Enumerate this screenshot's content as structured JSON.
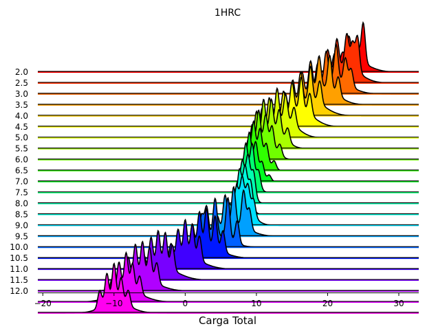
{
  "chart_data": {
    "type": "ridgeline",
    "title": "1HRC",
    "xlabel": "Carga Total",
    "ylabel": "",
    "xlim": [
      -20.7,
      32.8
    ],
    "xticks": [
      -20,
      -10,
      0,
      10,
      20,
      30
    ],
    "grid": false,
    "ridges": [
      {
        "label": "2.0",
        "center": 23.6,
        "spread": 2.0,
        "color": "#ff0000",
        "peaks": [
          [
            25.0,
            1.0
          ],
          [
            23.0,
            0.62
          ],
          [
            24.1,
            0.45
          ],
          [
            21.0,
            0.35
          ],
          [
            22.1,
            0.28
          ]
        ]
      },
      {
        "label": "2.5",
        "center": 22.3,
        "spread": 2.0,
        "color": "#ff3000",
        "peaks": [
          [
            24.2,
            0.55
          ],
          [
            22.7,
            0.5
          ],
          [
            21.3,
            0.45
          ],
          [
            20.0,
            0.38
          ],
          [
            23.5,
            0.4
          ]
        ]
      },
      {
        "label": "3.0",
        "center": 20.9,
        "spread": 2.1,
        "color": "#ff6a00",
        "peaks": [
          [
            21.2,
            0.7
          ],
          [
            19.8,
            0.6
          ],
          [
            22.5,
            0.5
          ],
          [
            18.6,
            0.45
          ],
          [
            23.3,
            0.35
          ]
        ]
      },
      {
        "label": "3.5",
        "center": 19.1,
        "spread": 2.1,
        "color": "#ffa000",
        "peaks": [
          [
            20.3,
            0.55
          ],
          [
            18.8,
            0.5
          ],
          [
            17.6,
            0.48
          ],
          [
            16.4,
            0.4
          ],
          [
            21.5,
            0.3
          ]
        ]
      },
      {
        "label": "4.0",
        "center": 17.5,
        "spread": 2.0,
        "color": "#ffd000",
        "peaks": [
          [
            17.6,
            0.6
          ],
          [
            16.2,
            0.55
          ],
          [
            15.1,
            0.5
          ],
          [
            18.9,
            0.4
          ],
          [
            14.0,
            0.35
          ]
        ]
      },
      {
        "label": "4.5",
        "center": 16.0,
        "spread": 1.9,
        "color": "#ffff00",
        "peaks": [
          [
            16.3,
            0.55
          ],
          [
            15.0,
            0.5
          ],
          [
            13.8,
            0.45
          ],
          [
            17.5,
            0.35
          ],
          [
            12.7,
            0.3
          ]
        ]
      },
      {
        "label": "5.0",
        "center": 14.0,
        "spread": 1.7,
        "color": "#ddff00",
        "peaks": [
          [
            12.9,
            0.6
          ],
          [
            11.8,
            0.55
          ],
          [
            14.1,
            0.45
          ],
          [
            10.8,
            0.45
          ],
          [
            15.3,
            0.3
          ]
        ]
      },
      {
        "label": "5.5",
        "center": 12.5,
        "spread": 1.5,
        "color": "#a8ff00",
        "peaks": [
          [
            11.0,
            0.65
          ],
          [
            12.1,
            0.55
          ],
          [
            10.0,
            0.55
          ],
          [
            13.2,
            0.4
          ],
          [
            14.4,
            0.22
          ]
        ]
      },
      {
        "label": "6.0",
        "center": 11.3,
        "spread": 1.3,
        "color": "#70ff00",
        "peaks": [
          [
            10.3,
            0.7
          ],
          [
            11.3,
            0.55
          ],
          [
            9.4,
            0.55
          ],
          [
            12.2,
            0.4
          ],
          [
            13.3,
            0.2
          ]
        ]
      },
      {
        "label": "6.5",
        "center": 10.4,
        "spread": 1.1,
        "color": "#30ff00",
        "peaks": [
          [
            9.6,
            0.75
          ],
          [
            10.5,
            0.55
          ],
          [
            8.8,
            0.5
          ],
          [
            11.4,
            0.35
          ],
          [
            12.5,
            0.15
          ]
        ]
      },
      {
        "label": "7.0",
        "center": 9.7,
        "spread": 0.9,
        "color": "#00ff20",
        "peaks": [
          [
            9.0,
            0.8
          ],
          [
            9.9,
            0.55
          ],
          [
            8.3,
            0.4
          ],
          [
            10.8,
            0.28
          ],
          [
            11.8,
            0.12
          ]
        ]
      },
      {
        "label": "7.5",
        "center": 9.3,
        "spread": 0.8,
        "color": "#00ff70",
        "peaks": [
          [
            8.5,
            0.65
          ],
          [
            9.4,
            0.55
          ],
          [
            7.8,
            0.35
          ],
          [
            10.3,
            0.25
          ]
        ]
      },
      {
        "label": "8.0",
        "center": 8.9,
        "spread": 0.7,
        "color": "#00ffb0",
        "peaks": [
          [
            8.0,
            0.55
          ],
          [
            8.8,
            0.5
          ],
          [
            9.6,
            0.35
          ],
          [
            7.3,
            0.3
          ]
        ]
      },
      {
        "label": "8.5",
        "center": 8.5,
        "spread": 0.7,
        "color": "#00ffe0",
        "peaks": [
          [
            7.6,
            0.5
          ],
          [
            8.4,
            0.4
          ],
          [
            9.2,
            0.3
          ],
          [
            6.8,
            0.25
          ]
        ]
      },
      {
        "label": "9.0",
        "center": 8.0,
        "spread": 1.4,
        "color": "#00e0ff",
        "peaks": [
          [
            8.0,
            0.45
          ],
          [
            8.8,
            0.38
          ],
          [
            7.2,
            0.35
          ],
          [
            9.6,
            0.25
          ],
          [
            6.2,
            0.2
          ]
        ]
      },
      {
        "label": "9.5",
        "center": 7.0,
        "spread": 2.0,
        "color": "#00a0ff",
        "peaks": [
          [
            6.8,
            1.0
          ],
          [
            8.2,
            0.95
          ],
          [
            5.6,
            0.85
          ],
          [
            9.0,
            0.55
          ],
          [
            4.5,
            0.4
          ]
        ]
      },
      {
        "label": "10.0",
        "center": 4.3,
        "spread": 2.0,
        "color": "#0060ff",
        "peaks": [
          [
            6.0,
            1.0
          ],
          [
            4.2,
            0.9
          ],
          [
            3.0,
            0.75
          ],
          [
            2.3,
            0.6
          ],
          [
            7.3,
            0.55
          ]
        ]
      },
      {
        "label": "10.5",
        "center": 3.0,
        "spread": 2.2,
        "color": "#0018ff",
        "peaks": [
          [
            3.0,
            1.0
          ],
          [
            2.0,
            0.95
          ],
          [
            4.2,
            0.85
          ],
          [
            1.0,
            0.7
          ],
          [
            5.3,
            0.55
          ]
        ]
      },
      {
        "label": "11.0",
        "center": 0.3,
        "spread": 2.2,
        "color": "#4000ff",
        "peaks": [
          [
            0.0,
            1.0
          ],
          [
            1.0,
            0.9
          ],
          [
            -1.0,
            0.8
          ],
          [
            2.0,
            0.65
          ],
          [
            -2.0,
            0.5
          ]
        ]
      },
      {
        "label": "11.5",
        "center": -3.2,
        "spread": 2.2,
        "color": "#7800ff",
        "peaks": [
          [
            -3.8,
            0.9
          ],
          [
            -2.8,
            0.85
          ],
          [
            -4.8,
            0.8
          ],
          [
            -1.8,
            0.6
          ],
          [
            -5.8,
            0.45
          ]
        ]
      },
      {
        "label": "12.0",
        "center": -6.2,
        "spread": 2.3,
        "color": "#b000ff",
        "peaks": [
          [
            -6.0,
            0.9
          ],
          [
            -7.0,
            0.85
          ],
          [
            -5.0,
            0.8
          ],
          [
            -8.0,
            0.6
          ],
          [
            -4.0,
            0.5
          ]
        ]
      },
      {
        "label": "",
        "center": -8.2,
        "spread": 2.2,
        "color": "#e000ff",
        "peaks": [
          [
            -8.3,
            0.95
          ],
          [
            -7.4,
            0.7
          ],
          [
            -9.3,
            0.75
          ],
          [
            -6.4,
            0.45
          ],
          [
            -10.3,
            0.4
          ]
        ]
      },
      {
        "label": "",
        "center": -9.7,
        "spread": 1.9,
        "color": "#ff00f0",
        "peaks": [
          [
            -10.0,
            1.0
          ],
          [
            -11.0,
            0.8
          ],
          [
            -9.0,
            0.65
          ],
          [
            -12.0,
            0.45
          ],
          [
            -8.0,
            0.4
          ]
        ]
      }
    ]
  }
}
